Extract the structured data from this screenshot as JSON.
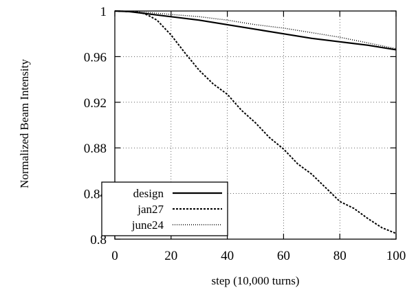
{
  "chart_data": {
    "type": "line",
    "title": "",
    "xlabel": "step (10,000 turns)",
    "ylabel": "Normalized Beam Intensity",
    "xlim": [
      0,
      100
    ],
    "ylim": [
      0.8,
      1.0
    ],
    "x_ticks": [
      0,
      20,
      40,
      60,
      80,
      100
    ],
    "y_ticks": [
      0.8,
      0.84,
      0.88,
      0.92,
      0.96,
      1.0
    ],
    "x_tick_labels": [
      "0",
      "20",
      "40",
      "60",
      "80",
      "100"
    ],
    "y_tick_labels": [
      "0.8",
      "0.84",
      "0.88",
      "0.92",
      "0.96",
      "1"
    ],
    "grid": true,
    "legend_position": "bottom-left",
    "series": [
      {
        "name": "design",
        "style": "solid",
        "x": [
          0,
          5,
          10,
          20,
          30,
          40,
          50,
          60,
          70,
          80,
          90,
          100
        ],
        "y": [
          1.0,
          0.9995,
          0.998,
          0.995,
          0.992,
          0.988,
          0.984,
          0.98,
          0.976,
          0.973,
          0.97,
          0.966
        ]
      },
      {
        "name": "jan27",
        "style": "dashed",
        "x": [
          0,
          5,
          8,
          10,
          12,
          15,
          20,
          25,
          30,
          35,
          40,
          45,
          50,
          55,
          60,
          65,
          70,
          75,
          80,
          85,
          90,
          95,
          100
        ],
        "y": [
          1.0,
          0.9995,
          0.999,
          0.998,
          0.996,
          0.992,
          0.979,
          0.963,
          0.948,
          0.936,
          0.927,
          0.913,
          0.902,
          0.889,
          0.879,
          0.866,
          0.857,
          0.845,
          0.833,
          0.827,
          0.818,
          0.81,
          0.805
        ]
      },
      {
        "name": "june24",
        "style": "dotted",
        "x": [
          0,
          5,
          10,
          20,
          30,
          40,
          50,
          60,
          70,
          80,
          90,
          100
        ],
        "y": [
          1.0,
          0.9997,
          0.999,
          0.997,
          0.995,
          0.992,
          0.988,
          0.985,
          0.981,
          0.977,
          0.972,
          0.967
        ]
      }
    ]
  }
}
